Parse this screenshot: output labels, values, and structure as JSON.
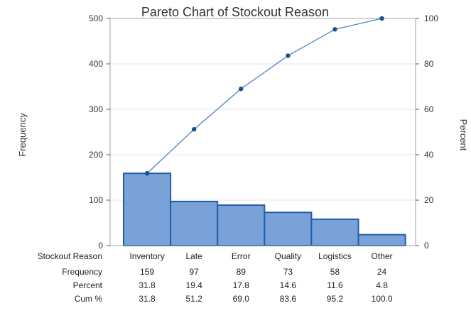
{
  "chart_data": {
    "type": "pareto",
    "title": "Pareto Chart of Stockout Reason",
    "ylabel_left": "Frequency",
    "ylabel_right": "Percent",
    "ylim_left": [
      0,
      500
    ],
    "ylim_right": [
      0,
      100
    ],
    "yticks_left": [
      "0",
      "100",
      "200",
      "300",
      "400",
      "500"
    ],
    "yticks_right": [
      "0",
      "20",
      "40",
      "60",
      "80",
      "100"
    ],
    "grid": true,
    "table": {
      "row_labels": [
        "Stockout Reason",
        "Frequency",
        "Percent",
        "Cum %"
      ],
      "categories": [
        "Inventory",
        "Late",
        "Error",
        "Quality",
        "Logistics",
        "Other"
      ],
      "frequency": [
        "159",
        "97",
        "89",
        "73",
        "58",
        "24"
      ],
      "percent": [
        "31.8",
        "19.4",
        "17.8",
        "14.6",
        "11.6",
        "4.8"
      ],
      "cum_percent": [
        "31.8",
        "51.2",
        "69.0",
        "83.6",
        "95.2",
        "100.0"
      ]
    },
    "values": [
      159,
      97,
      89,
      73,
      58,
      24
    ],
    "cum_percent_values": [
      31.8,
      51.2,
      69.0,
      83.6,
      95.2,
      100.0
    ],
    "colors": {
      "bar_fill": "#7aa2d8",
      "bar_stroke": "#1f5ea8",
      "line": "#4f81c7",
      "point": "#1f4e8c",
      "grid": "#e2e6ec"
    }
  }
}
